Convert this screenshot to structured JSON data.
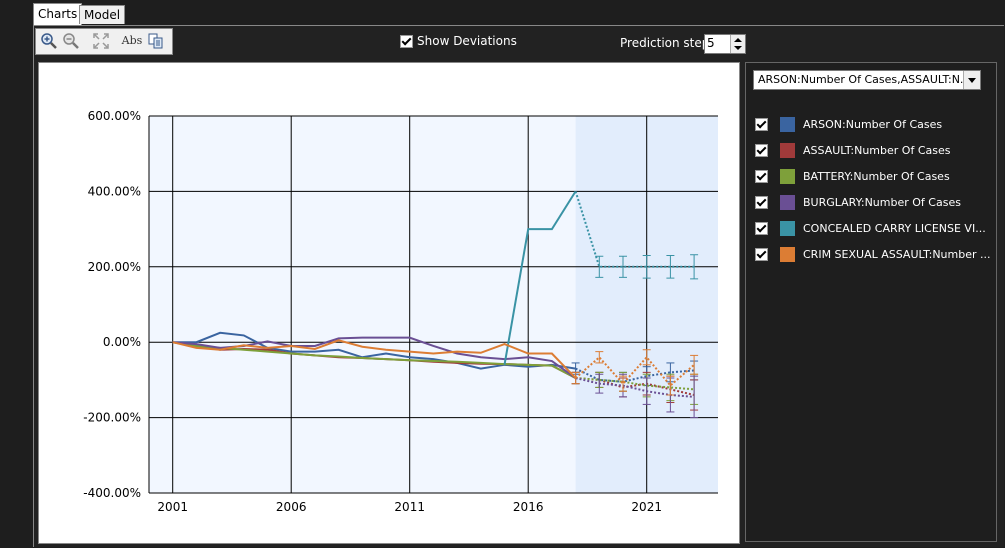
{
  "tabs": [
    {
      "label": "Charts",
      "active": true
    },
    {
      "label": "Model",
      "active": false
    }
  ],
  "toolbar": {
    "icons": [
      "zoom-in-icon",
      "zoom-out-icon",
      "fit-icon",
      "abs-icon",
      "copy-icon"
    ],
    "abs_label": "Abs"
  },
  "options": {
    "show_deviations_label": "Show Deviations",
    "show_deviations_checked": true,
    "prediction_steps_label": "Prediction steps",
    "prediction_steps_value": "5"
  },
  "legend": {
    "selector_value": "ARSON:Number Of Cases,ASSAULT:N...",
    "items": [
      {
        "label": "ARSON:Number Of Cases",
        "color": "#3a64a0",
        "checked": true
      },
      {
        "label": "ASSAULT:Number Of Cases",
        "color": "#a03a3a",
        "checked": true
      },
      {
        "label": "BATTERY:Number Of Cases",
        "color": "#7ea03a",
        "checked": true
      },
      {
        "label": "BURGLARY:Number Of Cases",
        "color": "#6a4f94",
        "checked": true
      },
      {
        "label": "CONCEALED CARRY LICENSE VI...",
        "color": "#3a93a5",
        "checked": true
      },
      {
        "label": "CRIM SEXUAL ASSAULT:Number ...",
        "color": "#dc7d34",
        "checked": true
      }
    ]
  },
  "chart_data": {
    "type": "line",
    "xlim": [
      2000,
      2024
    ],
    "ylim": [
      -400,
      600
    ],
    "x_ticks": [
      2001,
      2006,
      2011,
      2016,
      2021
    ],
    "y_ticks": [
      "600.00%",
      "400.00%",
      "200.00%",
      "0.00%",
      "-200.00%",
      "-400.00%"
    ],
    "y_tick_values": [
      600,
      400,
      200,
      0,
      -200,
      -400
    ],
    "forecast_start": 2018,
    "grid": true,
    "series": [
      {
        "name": "ARSON:Number Of Cases",
        "color": "#3a64a0",
        "x": [
          2001,
          2002,
          2003,
          2004,
          2005,
          2006,
          2007,
          2008,
          2009,
          2010,
          2011,
          2012,
          2013,
          2014,
          2015,
          2016,
          2017,
          2018
        ],
        "values": [
          0,
          0,
          25,
          18,
          -15,
          -25,
          -25,
          -20,
          -40,
          -30,
          -40,
          -45,
          -55,
          -70,
          -60,
          -65,
          -60,
          -70
        ],
        "forecast": {
          "x": [
            2018,
            2019,
            2020,
            2021,
            2022,
            2023
          ],
          "values": [
            -70,
            -100,
            -105,
            -90,
            -80,
            -75
          ],
          "dev": [
            15,
            20,
            25,
            25,
            25,
            25
          ]
        }
      },
      {
        "name": "ASSAULT:Number Of Cases",
        "color": "#a03a3a",
        "x": [
          2001,
          2002,
          2003,
          2004,
          2005,
          2006,
          2007,
          2008,
          2009,
          2010,
          2011,
          2012,
          2013,
          2014,
          2015,
          2016,
          2017,
          2018
        ],
        "values": [
          0,
          -10,
          -20,
          -18,
          -20,
          -30,
          -35,
          -40,
          -42,
          -45,
          -48,
          -52,
          -55,
          -57,
          -58,
          -60,
          -62,
          -95
        ],
        "forecast": {
          "x": [
            2018,
            2019,
            2020,
            2021,
            2022,
            2023
          ],
          "values": [
            -95,
            -100,
            -120,
            -110,
            -125,
            -140
          ],
          "dev": [
            15,
            20,
            25,
            30,
            35,
            40
          ]
        }
      },
      {
        "name": "BATTERY:Number Of Cases",
        "color": "#7ea03a",
        "x": [
          2001,
          2002,
          2003,
          2004,
          2005,
          2006,
          2007,
          2008,
          2009,
          2010,
          2011,
          2012,
          2013,
          2014,
          2015,
          2016,
          2017,
          2018
        ],
        "values": [
          0,
          -10,
          -15,
          -20,
          -25,
          -30,
          -35,
          -38,
          -42,
          -45,
          -48,
          -50,
          -52,
          -55,
          -58,
          -60,
          -62,
          -95
        ],
        "forecast": {
          "x": [
            2018,
            2019,
            2020,
            2021,
            2022,
            2023
          ],
          "values": [
            -95,
            -100,
            -105,
            -115,
            -120,
            -125
          ],
          "dev": [
            15,
            20,
            25,
            30,
            35,
            40
          ]
        }
      },
      {
        "name": "BURGLARY:Number Of Cases",
        "color": "#6a4f94",
        "x": [
          2001,
          2002,
          2003,
          2004,
          2005,
          2006,
          2007,
          2008,
          2009,
          2010,
          2011,
          2012,
          2013,
          2014,
          2015,
          2016,
          2017,
          2018
        ],
        "values": [
          0,
          -5,
          -15,
          -10,
          2,
          -10,
          -10,
          10,
          12,
          12,
          12,
          -10,
          -30,
          -40,
          -45,
          -40,
          -50,
          -95
        ],
        "forecast": {
          "x": [
            2018,
            2019,
            2020,
            2021,
            2022,
            2023
          ],
          "values": [
            -95,
            -110,
            -115,
            -130,
            -140,
            -145
          ],
          "dev": [
            15,
            25,
            30,
            35,
            45,
            55
          ]
        }
      },
      {
        "name": "CONCEALED CARRY LICENSE VI...",
        "color": "#3a93a5",
        "x": [
          2015,
          2016,
          2017,
          2018
        ],
        "values": [
          -60,
          300,
          300,
          400
        ],
        "forecast": {
          "x": [
            2018,
            2019,
            2020,
            2021,
            2022,
            2023
          ],
          "values": [
            400,
            200,
            200,
            200,
            200,
            200
          ],
          "dev": [
            0,
            28,
            28,
            30,
            30,
            32
          ]
        }
      },
      {
        "name": "CRIM SEXUAL ASSAULT:Number ...",
        "color": "#dc7d34",
        "x": [
          2001,
          2002,
          2003,
          2004,
          2005,
          2006,
          2007,
          2008,
          2009,
          2010,
          2011,
          2012,
          2013,
          2014,
          2015,
          2016,
          2017,
          2018
        ],
        "values": [
          0,
          -15,
          -20,
          -8,
          -15,
          -10,
          -18,
          5,
          -12,
          -20,
          -25,
          -30,
          -25,
          -28,
          -5,
          -30,
          -30,
          -95
        ],
        "forecast": {
          "x": [
            2018,
            2019,
            2020,
            2021,
            2022,
            2023
          ],
          "values": [
            -95,
            -40,
            -110,
            -40,
            -115,
            -60
          ],
          "dev": [
            15,
            15,
            20,
            20,
            25,
            25
          ]
        }
      }
    ]
  }
}
